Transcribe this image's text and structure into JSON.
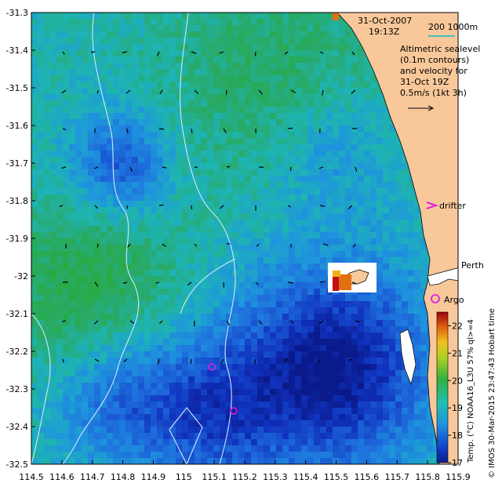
{
  "map": {
    "date": "31-Oct-2007",
    "time": "19:13Z",
    "bathymetry_legend": "200  1000m",
    "info_lines": [
      "Altimetric sealevel",
      "(0.1m contours)",
      "and velocity for",
      "31-Oct 19Z",
      "0.5m/s (1kt 3h)"
    ],
    "labels": {
      "drifter": "drifter",
      "perth": "Perth",
      "argo": "Argo"
    },
    "colorbar": {
      "title": "Temp. (°C) NOAA16_L3U 57% ql>=4",
      "ticks": [
        "22",
        "21",
        "20",
        "19",
        "18",
        "17"
      ],
      "min": 17,
      "max": 22.5
    },
    "credit": "© IMOS 30-Mar-2015 23:47:43 Hobart time",
    "x_axis": {
      "ticks": [
        "114.5",
        "114.6",
        "114.7",
        "114.8",
        "114.9",
        "115",
        "115.1",
        "115.2",
        "115.3",
        "115.4",
        "115.5",
        "115.6",
        "115.7",
        "115.8",
        "115.9"
      ]
    },
    "y_axis": {
      "ticks": [
        "-31.3",
        "-31.4",
        "-31.5",
        "-31.6",
        "-31.7",
        "-31.8",
        "-31.9",
        "-32",
        "-32.1",
        "-32.2",
        "-32.3",
        "-32.4",
        "-32.5"
      ]
    },
    "colors": {
      "land": "#f8c89a",
      "cold": "#0a1a8a",
      "mid": "#2090d0",
      "warm": "#30b040",
      "contour": "#d0e8ff",
      "marker": "#e020e0"
    }
  }
}
